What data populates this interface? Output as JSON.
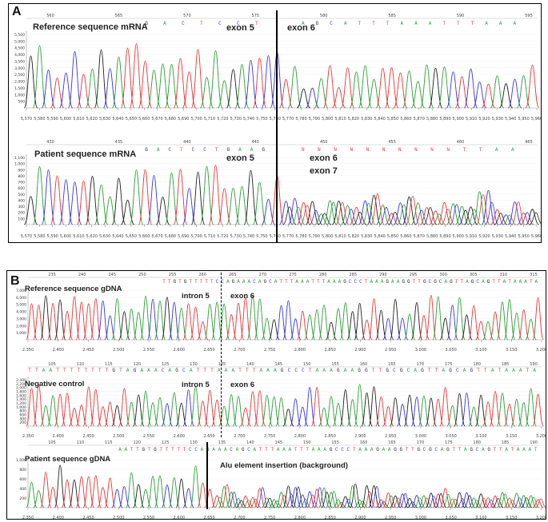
{
  "panel_a": {
    "letter": "A",
    "reference": {
      "title": "Reference sequence mRNA",
      "label_left": "exon 5",
      "label_right": "exon 6",
      "ruler": [
        "560",
        "565",
        "570",
        "575",
        "580",
        "585",
        "590",
        "595"
      ],
      "bases_left": "G A C T C C T",
      "bases_right": "A G C A T T T A A A T T T A A A",
      "y_ticks": [
        "5,500",
        "5,000",
        "4,500",
        "4,000",
        "3,500",
        "3,000",
        "2,500",
        "2,000",
        "1,500",
        "1,000",
        "500"
      ],
      "x_ticks": [
        "5,570",
        "5,580",
        "5,590",
        "5,600",
        "5,610",
        "5,620",
        "5,630",
        "5,640",
        "5,650",
        "5,660",
        "5,670",
        "5,680",
        "5,690",
        "5,700",
        "5,710",
        "5,720",
        "5,730",
        "5,740",
        "5,750",
        "5,760",
        "5,770",
        "5,780",
        "5,790",
        "5,800",
        "5,810",
        "5,820",
        "5,830",
        "5,840",
        "5,850",
        "5,860",
        "5,870",
        "5,880",
        "5,890",
        "5,900",
        "5,910",
        "5,920",
        "5,930",
        "5,940",
        "5,950",
        "5,960"
      ]
    },
    "patient": {
      "title": "Patient sequence mRNA",
      "label_left": "exon 5",
      "label_right_1": "exon 6",
      "label_right_2": "exon 7",
      "ruler": [
        "430",
        "435",
        "440",
        "445",
        "450",
        "455",
        "460",
        "465"
      ],
      "bases_left": "G A C T C C T G A A G",
      "bases_right": "N N N N N N N N N N T T A A",
      "y_ticks": [
        "1,100",
        "1,000",
        "900",
        "800",
        "700",
        "600",
        "500",
        "400",
        "300",
        "200",
        "100"
      ],
      "x_ticks": [
        "5,570",
        "5,580",
        "5,590",
        "5,600",
        "5,610",
        "5,620",
        "5,630",
        "5,640",
        "5,650",
        "5,660",
        "5,670",
        "5,680",
        "5,690",
        "5,700",
        "5,710",
        "5,720",
        "5,730",
        "5,740",
        "5,750",
        "5,760",
        "5,770",
        "5,780",
        "5,790",
        "5,800",
        "5,810",
        "5,820",
        "5,830",
        "5,840",
        "5,850",
        "5,860",
        "5,870",
        "5,880",
        "5,890",
        "5,900",
        "5,910",
        "5,920",
        "5,930",
        "5,940",
        "5,950",
        "5,960"
      ]
    }
  },
  "panel_b": {
    "letter": "B",
    "reference": {
      "title": "Reference sequence gDNA",
      "label_left": "intron 5",
      "label_right": "exon 6",
      "ruler": [
        "235",
        "240",
        "245",
        "250",
        "255",
        "260",
        "265",
        "270",
        "275",
        "280",
        "285",
        "290",
        "295",
        "300",
        "305",
        "310",
        "315"
      ],
      "bases": "TTGTGTTTTTCCAGAAACAGCATTTAAATTTAAAGCCCTAAAGAAGGTTGCGCAGTTAGCAGTTATAAATA",
      "y_ticks": [
        "7,000",
        "6,000",
        "5,000",
        "4,000",
        "3,000",
        "2,000",
        "1,000"
      ],
      "x_ticks": [
        "2,350",
        "2,400",
        "2,450",
        "2,500",
        "2,550",
        "2,600",
        "2,650",
        "2,700",
        "2,750",
        "2,800",
        "2,850",
        "2,900",
        "2,950",
        "3,000",
        "3,050",
        "3,100",
        "3,150",
        "3,200"
      ]
    },
    "negative": {
      "title": "Negative control",
      "label_left": "intron 5",
      "label_right": "exon 6",
      "ruler": [
        "105",
        "110",
        "115",
        "120",
        "125",
        "130",
        "135",
        "140",
        "145",
        "150",
        "155",
        "160",
        "165",
        "170",
        "175",
        "180",
        "185",
        "190"
      ],
      "bases": "TTAATTTTTTTTGTAGAAACAGCATTTAAATTTAAAGCCCTAAAGAAGGTTGCGCAGTTAGCAGTTATAAATA",
      "y_ticks": [
        "2,400",
        "2,200",
        "2,000",
        "1,800",
        "1,600",
        "1,400",
        "1,200",
        "1,000",
        "800",
        "600",
        "400",
        "200"
      ],
      "x_ticks": [
        "2,350",
        "2,400",
        "2,450",
        "2,500",
        "2,550",
        "2,600",
        "2,650",
        "2,700",
        "2,750",
        "2,800",
        "2,850",
        "2,900",
        "2,950",
        "3,000",
        "3,050",
        "3,100",
        "3,150",
        "3,200"
      ]
    },
    "patient": {
      "title": "Patient sequence gDNA",
      "label_right": "Alu element insertion (background)",
      "ruler": [
        "105",
        "110",
        "115",
        "120",
        "125",
        "130",
        "135",
        "140",
        "145",
        "150",
        "155",
        "160",
        "165",
        "170",
        "175",
        "180",
        "185",
        "190"
      ],
      "bases": "AATTGTGTTTTTCCAGAAACAGCATTTAAATTTAAAGCCCTAAAGAAGGTTGCGCAGTTAGCAGTTATAAAT",
      "y_ticks": [
        "1,000",
        "800",
        "600",
        "400",
        "200"
      ],
      "x_ticks": [
        "2,350",
        "2,400",
        "2,450",
        "2,500",
        "2,550",
        "2,600",
        "2,650",
        "2,700",
        "2,750",
        "2,800",
        "2,850",
        "2,900",
        "2,950",
        "3,000",
        "3,050",
        "3,100",
        "3,150",
        "3,200"
      ]
    }
  },
  "colors": {
    "A": "#2e9e3a",
    "C": "#3a3ad6",
    "G": "#222222",
    "T": "#e03a3a",
    "N": "#e03a3a"
  }
}
